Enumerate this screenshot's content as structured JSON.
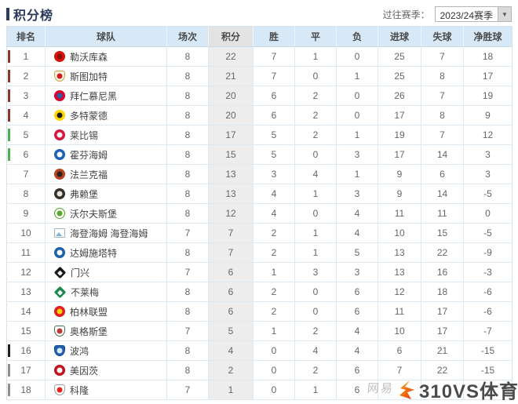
{
  "page": {
    "title": "积分榜",
    "season_label": "过往赛季：",
    "season_value": "2023/24赛季",
    "season_arrow": "▼"
  },
  "table": {
    "headers": [
      "排名",
      "球队",
      "场次",
      "积分",
      "胜",
      "平",
      "负",
      "进球",
      "失球",
      "净胜球"
    ],
    "rows": [
      {
        "rank": "1",
        "team": "勒沃库森",
        "played": "8",
        "points": "22",
        "win": "7",
        "draw": "1",
        "loss": "0",
        "gf": "25",
        "ga": "7",
        "gd": "18",
        "zone": "ucl",
        "logo": {
          "shape": "circle",
          "c1": "#d6130c",
          "c2": "#8f0f08"
        }
      },
      {
        "rank": "2",
        "team": "斯图加特",
        "played": "8",
        "points": "21",
        "win": "7",
        "draw": "0",
        "loss": "1",
        "gf": "25",
        "ga": "8",
        "gd": "17",
        "zone": "ucl",
        "logo": {
          "shape": "crest",
          "c1": "#f7f3e6",
          "c2": "#cf1b1b",
          "border": "#c3a437"
        }
      },
      {
        "rank": "3",
        "team": "拜仁慕尼黑",
        "played": "8",
        "points": "20",
        "win": "6",
        "draw": "2",
        "loss": "0",
        "gf": "26",
        "ga": "7",
        "gd": "19",
        "zone": "ucl",
        "logo": {
          "shape": "circle",
          "c1": "#dd0129",
          "c2": "#2a5fa5"
        }
      },
      {
        "rank": "4",
        "team": "多特蒙德",
        "played": "8",
        "points": "20",
        "win": "6",
        "draw": "2",
        "loss": "0",
        "gf": "17",
        "ga": "8",
        "gd": "9",
        "zone": "ucl",
        "logo": {
          "shape": "circle",
          "c1": "#fdd800",
          "c2": "#1a1a1a"
        }
      },
      {
        "rank": "5",
        "team": "莱比锡",
        "played": "8",
        "points": "17",
        "win": "5",
        "draw": "2",
        "loss": "1",
        "gf": "19",
        "ga": "7",
        "gd": "12",
        "zone": "uel",
        "logo": {
          "shape": "circle",
          "c1": "#d8173f",
          "c2": "#f5f5f5"
        }
      },
      {
        "rank": "6",
        "team": "霍芬海姆",
        "played": "8",
        "points": "15",
        "win": "5",
        "draw": "0",
        "loss": "3",
        "gf": "17",
        "ga": "14",
        "gd": "3",
        "zone": "uel",
        "logo": {
          "shape": "circle",
          "c1": "#1c63b7",
          "c2": "#ffffff"
        }
      },
      {
        "rank": "7",
        "team": "法兰克福",
        "played": "8",
        "points": "13",
        "win": "3",
        "draw": "4",
        "loss": "1",
        "gf": "9",
        "ga": "6",
        "gd": "3",
        "zone": "",
        "logo": {
          "shape": "circle",
          "c1": "#b5441f",
          "c2": "#26211c"
        }
      },
      {
        "rank": "8",
        "team": "弗赖堡",
        "played": "8",
        "points": "13",
        "win": "4",
        "draw": "1",
        "loss": "3",
        "gf": "9",
        "ga": "14",
        "gd": "-5",
        "zone": "",
        "logo": {
          "shape": "circle",
          "c1": "#35302c",
          "c2": "#e8e4dc"
        }
      },
      {
        "rank": "9",
        "team": "沃尔夫斯堡",
        "played": "8",
        "points": "12",
        "win": "4",
        "draw": "0",
        "loss": "4",
        "gf": "11",
        "ga": "11",
        "gd": "0",
        "zone": "",
        "logo": {
          "shape": "circle",
          "c1": "#ffffff",
          "c2": "#57a829",
          "border": "#57a829"
        }
      },
      {
        "rank": "10",
        "team": "海登海姆 海登海姆",
        "played": "7",
        "points": "7",
        "win": "2",
        "draw": "1",
        "loss": "4",
        "gf": "10",
        "ga": "15",
        "gd": "-5",
        "zone": "",
        "logo": {
          "shape": "broken",
          "c1": "#fdfdfd",
          "c2": "#7fb2d9"
        }
      },
      {
        "rank": "11",
        "team": "达姆施塔特",
        "played": "8",
        "points": "7",
        "win": "2",
        "draw": "1",
        "loss": "5",
        "gf": "13",
        "ga": "22",
        "gd": "-9",
        "zone": "",
        "logo": {
          "shape": "circle",
          "c1": "#1c5fad",
          "c2": "#ffffff"
        }
      },
      {
        "rank": "12",
        "team": "门兴",
        "played": "7",
        "points": "6",
        "win": "1",
        "draw": "3",
        "loss": "3",
        "gf": "13",
        "ga": "16",
        "gd": "-3",
        "zone": "",
        "logo": {
          "shape": "diamond",
          "c1": "#17191b",
          "c2": "#f2f2f2"
        }
      },
      {
        "rank": "13",
        "team": "不莱梅",
        "played": "8",
        "points": "6",
        "win": "2",
        "draw": "0",
        "loss": "6",
        "gf": "12",
        "ga": "18",
        "gd": "-6",
        "zone": "",
        "logo": {
          "shape": "diamond",
          "c1": "#1c8a4e",
          "c2": "#ffffff"
        }
      },
      {
        "rank": "14",
        "team": "柏林联盟",
        "played": "8",
        "points": "6",
        "win": "2",
        "draw": "0",
        "loss": "6",
        "gf": "11",
        "ga": "17",
        "gd": "-6",
        "zone": "",
        "logo": {
          "shape": "circle",
          "c1": "#e21c23",
          "c2": "#fcd405"
        }
      },
      {
        "rank": "15",
        "team": "奥格斯堡",
        "played": "7",
        "points": "5",
        "win": "1",
        "draw": "2",
        "loss": "4",
        "gf": "10",
        "ga": "17",
        "gd": "-7",
        "zone": "",
        "logo": {
          "shape": "crest",
          "c1": "#ffffff",
          "c2": "#bc3934",
          "border": "#46714d"
        }
      },
      {
        "rank": "16",
        "team": "波鸿",
        "played": "8",
        "points": "4",
        "win": "0",
        "draw": "4",
        "loss": "4",
        "gf": "6",
        "ga": "21",
        "gd": "-15",
        "zone": "rel_playoff",
        "logo": {
          "shape": "crest",
          "c1": "#2160ae",
          "c2": "#dce9f7",
          "border": "#17498c"
        }
      },
      {
        "rank": "17",
        "team": "美因茨",
        "played": "8",
        "points": "2",
        "win": "0",
        "draw": "2",
        "loss": "6",
        "gf": "7",
        "ga": "22",
        "gd": "-15",
        "zone": "rel",
        "logo": {
          "shape": "circle",
          "c1": "#c3161c",
          "c2": "#ffffff"
        }
      },
      {
        "rank": "18",
        "team": "科隆",
        "played": "7",
        "points": "1",
        "win": "0",
        "draw": "1",
        "loss": "6",
        "gf": "",
        "ga": "",
        "gd": "",
        "zone": "rel",
        "logo": {
          "shape": "crest",
          "c1": "#ffffff",
          "c2": "#e5231b",
          "border": "#9a9a9a"
        }
      }
    ]
  },
  "watermark": {
    "brand_text": "310VS体育",
    "faint_text": "网易"
  },
  "colors": {
    "zones": {
      "ucl": "#8b3626",
      "uel": "#4fae50",
      "rel_playoff": "#1f1f1f",
      "rel": "#8f8f8f"
    },
    "title": "#2c3a5e",
    "header_bg": "#d7e9f6",
    "points_col_bg": "#ededed",
    "brand_orange": "#f05a1a"
  }
}
